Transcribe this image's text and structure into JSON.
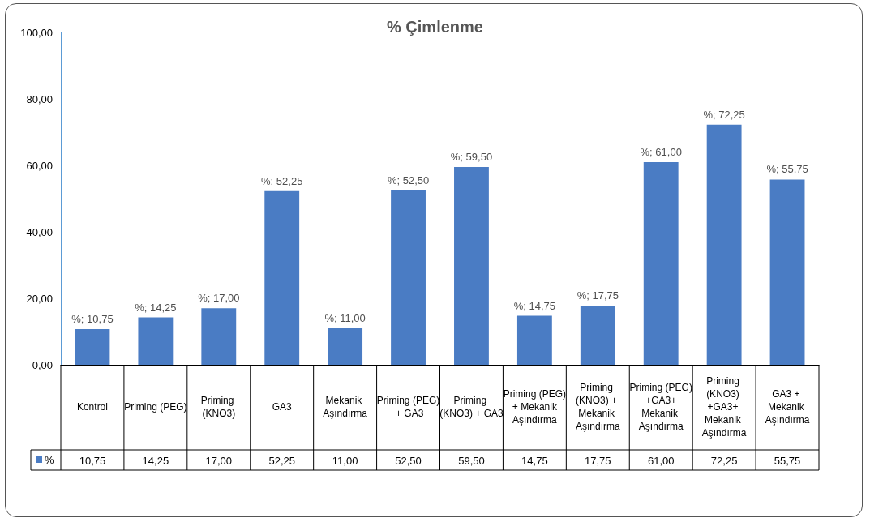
{
  "chart_data": {
    "type": "bar",
    "title": "% Çimlenme",
    "categories": [
      "Kontrol",
      "Priming (PEG)",
      "Priming (KNO3)",
      "GA3",
      "Mekanik Aşındırma",
      "Priming (PEG) + GA3",
      "Priming (KNO3) + GA3",
      "Priming (PEG) + Mekanik Aşındırma",
      "Priming (KNO3) + Mekanik Aşındırma",
      "Priming (PEG) +GA3+ Mekanik Aşındırma",
      "Priming (KNO3) +GA3+ Mekanik Aşındırma",
      "GA3 + Mekanik Aşındırma"
    ],
    "series": [
      {
        "name": "%",
        "color": "#4a7cc4",
        "values": [
          10.75,
          14.25,
          17.0,
          52.25,
          11.0,
          52.5,
          59.5,
          14.75,
          17.75,
          61.0,
          72.25,
          55.75
        ],
        "value_labels": [
          "10,75",
          "14,25",
          "17,00",
          "52,25",
          "11,00",
          "52,50",
          "59,50",
          "14,75",
          "17,75",
          "61,00",
          "72,25",
          "55,75"
        ]
      }
    ],
    "annotations": [
      {
        "text": "%; 10,75",
        "x": "Kontrol",
        "y": 10.75
      },
      {
        "text": "%; 14,25",
        "x": "Priming (PEG)",
        "y": 14.25
      },
      {
        "text": "%; 17,00",
        "x": "Priming (KNO3)",
        "y": 17.0
      },
      {
        "text": "%; 52,25",
        "x": "GA3",
        "y": 52.25
      },
      {
        "text": "%; 11,00",
        "x": "Mekanik Aşındırma",
        "y": 11.0
      },
      {
        "text": "%; 52,50",
        "x": "Priming (PEG) + GA3",
        "y": 52.5
      },
      {
        "text": "%; 59,50",
        "x": "Priming (KNO3) + GA3",
        "y": 59.5
      },
      {
        "text": "%; 14,75",
        "x": "Priming (PEG) + Mekanik Aşındırma",
        "y": 14.75
      },
      {
        "text": "%; 17,75",
        "x": "Priming (KNO3) + Mekanik Aşındırma",
        "y": 17.75
      },
      {
        "text": "%; 61,00",
        "x": "Priming (PEG) +GA3+ Mekanik Aşındırma",
        "y": 61.0
      },
      {
        "text": "%; 72,25",
        "x": "Priming (KNO3) +GA3+ Mekanik Aşındırma",
        "y": 72.25
      },
      {
        "text": "%; 55,75",
        "x": "GA3 + Mekanik Aşındırma",
        "y": 55.75
      }
    ],
    "ylim": [
      0,
      100
    ],
    "yticks": [
      {
        "value": 0,
        "label": "0,00"
      },
      {
        "value": 20,
        "label": "20,00"
      },
      {
        "value": 40,
        "label": "40,00"
      },
      {
        "value": 60,
        "label": "60,00"
      },
      {
        "value": 80,
        "label": "80,00"
      },
      {
        "value": 100,
        "label": "100,00"
      }
    ],
    "grid": false,
    "legend": "bottom left"
  }
}
